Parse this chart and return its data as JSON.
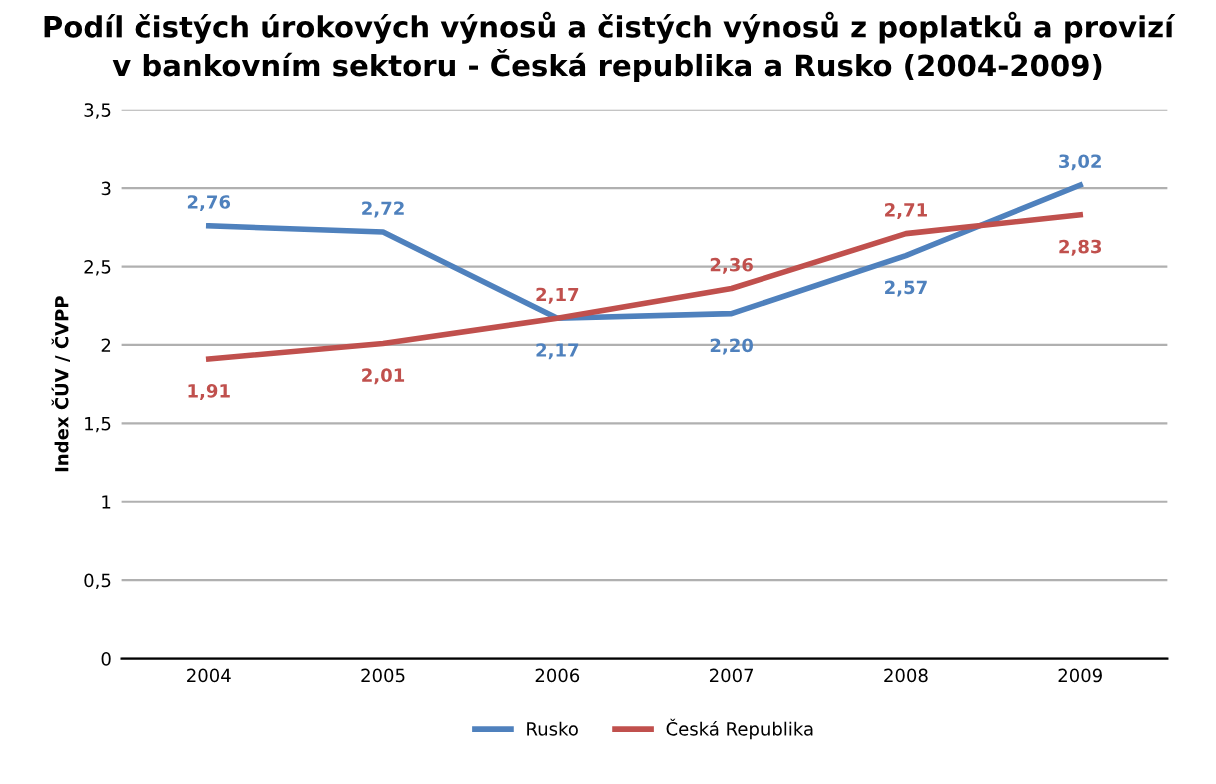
{
  "chart_data": {
    "type": "line",
    "title": "Podíl čistých úrokových výnosů a čistých výnosů z poplatků a provizí\nv bankovním sektoru - Česká republika a Rusko (2004-2009)",
    "ylabel": "Index ČÚV / ČVPP",
    "categories": [
      "2004",
      "2005",
      "2006",
      "2007",
      "2008",
      "2009"
    ],
    "series": [
      {
        "name": "Rusko",
        "color": "#4f81bd",
        "values": [
          2.76,
          2.72,
          2.17,
          2.2,
          2.57,
          3.02
        ],
        "value_labels": [
          "2,76",
          "2,72",
          "2,17",
          "2,20",
          "2,57",
          "3,02"
        ]
      },
      {
        "name": "Česká Republika",
        "color": "#c0504d",
        "values": [
          1.91,
          2.01,
          2.17,
          2.36,
          2.71,
          2.83
        ],
        "value_labels": [
          "1,91",
          "2,01",
          "2,17",
          "2,36",
          "2,71",
          "2,83"
        ]
      }
    ],
    "ylim": [
      0,
      3.5
    ],
    "yticks": [
      0,
      {
        "value": 0.5,
        "label": "0,5"
      },
      1,
      {
        "value": 1.5,
        "label": "1,5"
      },
      2,
      {
        "value": 2.5,
        "label": "2,5"
      },
      3,
      {
        "value": 3.5,
        "label": "3,5"
      }
    ],
    "grid": "y",
    "legend": "bottom",
    "marker": "none",
    "line_style": "solid"
  }
}
